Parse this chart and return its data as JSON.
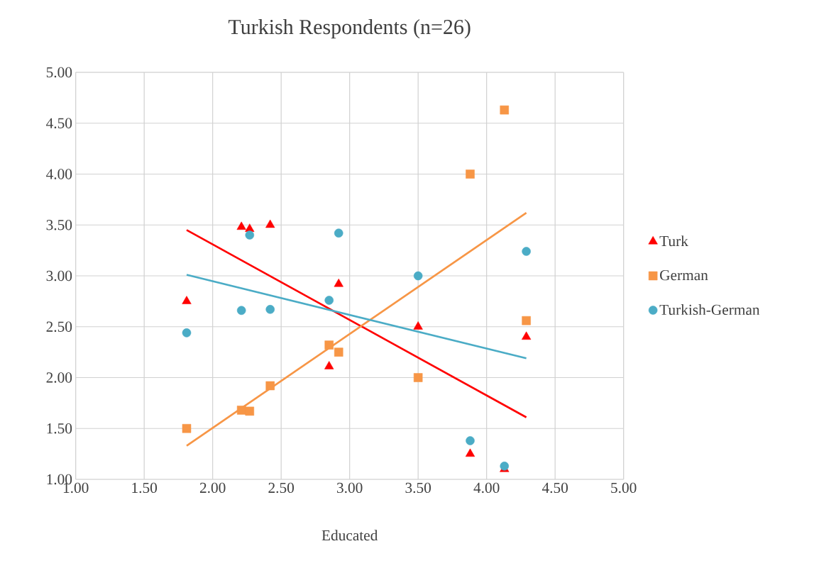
{
  "chart_data": {
    "type": "scatter",
    "title": "Turkish Respondents (n=26)",
    "xlabel": "Educated",
    "xlim": [
      1,
      5
    ],
    "ylim": [
      1,
      5
    ],
    "xticks": [
      {
        "value": 1,
        "label": "1.00"
      },
      {
        "value": 1.5,
        "label": "1.50"
      },
      {
        "value": 2,
        "label": "2.00"
      },
      {
        "value": 2.5,
        "label": "2.50"
      },
      {
        "value": 3,
        "label": "3.00"
      },
      {
        "value": 3.5,
        "label": "3.50"
      },
      {
        "value": 4,
        "label": "4.00"
      },
      {
        "value": 4.5,
        "label": "4.50"
      },
      {
        "value": 5,
        "label": "5.00"
      }
    ],
    "yticks": [
      {
        "value": 1,
        "label": "1.00"
      },
      {
        "value": 1.5,
        "label": "1.50"
      },
      {
        "value": 2,
        "label": "2.00"
      },
      {
        "value": 2.5,
        "label": "2.50"
      },
      {
        "value": 3,
        "label": "3.00"
      },
      {
        "value": 3.5,
        "label": "3.50"
      },
      {
        "value": 4,
        "label": "4.00"
      },
      {
        "value": 4.5,
        "label": "4.50"
      },
      {
        "value": 5,
        "label": "5.00"
      }
    ],
    "grid": true,
    "legend": "right",
    "series": [
      {
        "name": "Turk",
        "color": "#ff0000",
        "marker": "triangle",
        "x": [
          1.81,
          2.21,
          2.27,
          2.42,
          2.85,
          2.92,
          3.5,
          3.88,
          4.13,
          4.29
        ],
        "values": [
          2.75,
          3.48,
          3.46,
          3.5,
          2.11,
          2.92,
          2.5,
          1.25,
          1.1,
          2.4
        ]
      },
      {
        "name": "German",
        "color": "#f79646",
        "marker": "square",
        "x": [
          1.81,
          2.21,
          2.27,
          2.42,
          2.85,
          2.92,
          3.5,
          3.88,
          4.13,
          4.29
        ],
        "values": [
          1.5,
          1.68,
          1.67,
          1.92,
          2.32,
          2.25,
          2.0,
          4.0,
          4.63,
          2.56
        ]
      },
      {
        "name": "Turkish-German",
        "color": "#4bacc6",
        "marker": "circle",
        "x": [
          1.81,
          2.21,
          2.27,
          2.42,
          2.85,
          2.92,
          3.5,
          3.88,
          4.13,
          4.29
        ],
        "values": [
          2.44,
          2.66,
          3.4,
          2.67,
          2.76,
          3.42,
          3.0,
          1.38,
          1.13,
          3.24
        ]
      },
      {
        "type": "line",
        "color": "#ff0000",
        "marker": "none",
        "x": [
          1.81,
          4.29
        ],
        "values": [
          3.45,
          1.61
        ]
      },
      {
        "type": "line",
        "color": "#f79646",
        "marker": "none",
        "x": [
          1.81,
          4.29
        ],
        "values": [
          1.33,
          3.62
        ]
      },
      {
        "type": "line",
        "color": "#4bacc6",
        "marker": "none",
        "x": [
          1.81,
          4.29
        ],
        "values": [
          3.01,
          2.19
        ]
      }
    ]
  }
}
